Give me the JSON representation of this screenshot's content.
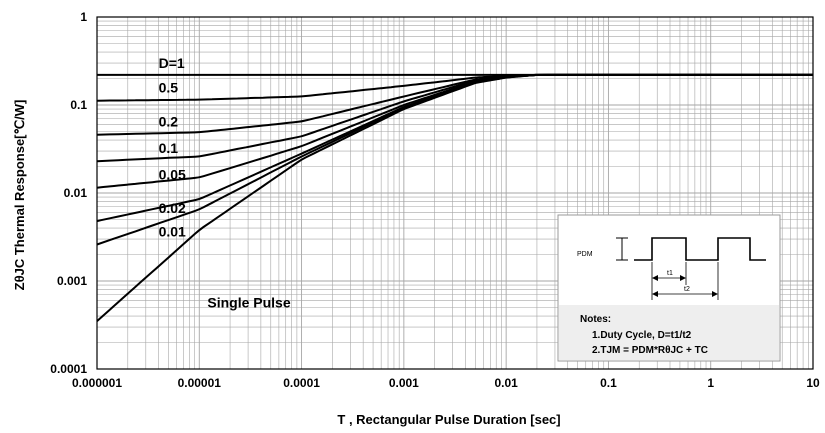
{
  "chart_data": {
    "type": "line",
    "xlabel": "T , Rectangular Pulse Duration [sec]",
    "ylabel": "ZθJC Thermal Response[℃/W]",
    "x_scale": "log",
    "y_scale": "log",
    "xlim": [
      1e-06,
      10
    ],
    "ylim": [
      0.0001,
      1
    ],
    "x_ticks": [
      "0.000001",
      "0.00001",
      "0.0001",
      "0.001",
      "0.01",
      "0.1",
      "1",
      "10"
    ],
    "y_ticks": [
      "1",
      "0.1",
      "0.01",
      "0.001",
      "0.0001"
    ],
    "grid": true,
    "steady_state": 0.22,
    "series": [
      {
        "name": "D=1",
        "x": [
          1e-06,
          0.001,
          0.01,
          10
        ],
        "y": [
          0.22,
          0.22,
          0.22,
          0.22
        ]
      },
      {
        "name": "0.5",
        "x": [
          1e-06,
          1e-05,
          0.0001,
          0.001,
          0.005,
          0.01,
          0.02,
          10
        ],
        "y": [
          0.112,
          0.115,
          0.125,
          0.165,
          0.205,
          0.215,
          0.22,
          0.22
        ]
      },
      {
        "name": "0.2",
        "x": [
          1e-06,
          1e-05,
          0.0001,
          0.001,
          0.005,
          0.01,
          0.02,
          10
        ],
        "y": [
          0.046,
          0.049,
          0.065,
          0.125,
          0.195,
          0.212,
          0.22,
          0.22
        ]
      },
      {
        "name": "0.1",
        "x": [
          1e-06,
          1e-05,
          0.0001,
          0.001,
          0.005,
          0.01,
          0.02,
          10
        ],
        "y": [
          0.023,
          0.026,
          0.044,
          0.11,
          0.19,
          0.21,
          0.22,
          0.22
        ]
      },
      {
        "name": "0.05",
        "x": [
          1e-06,
          1e-05,
          0.0001,
          0.001,
          0.005,
          0.01,
          0.02,
          10
        ],
        "y": [
          0.0115,
          0.015,
          0.034,
          0.1,
          0.185,
          0.208,
          0.22,
          0.22
        ]
      },
      {
        "name": "0.02",
        "x": [
          1e-06,
          1e-05,
          0.0001,
          0.001,
          0.005,
          0.01,
          0.02,
          10
        ],
        "y": [
          0.0048,
          0.0085,
          0.028,
          0.095,
          0.182,
          0.207,
          0.22,
          0.22
        ]
      },
      {
        "name": "0.01",
        "x": [
          1e-06,
          1e-05,
          0.0001,
          0.001,
          0.005,
          0.01,
          0.02,
          10
        ],
        "y": [
          0.0026,
          0.0065,
          0.026,
          0.093,
          0.18,
          0.206,
          0.22,
          0.22
        ]
      },
      {
        "name": "Single Pulse",
        "x": [
          1e-06,
          1e-05,
          0.0001,
          0.001,
          0.005,
          0.01,
          0.02,
          10
        ],
        "y": [
          0.00035,
          0.0038,
          0.024,
          0.09,
          0.178,
          0.205,
          0.22,
          0.22
        ]
      }
    ],
    "inset": {
      "pdm_label": "PDM",
      "t1_label": "t1",
      "t2_label": "t2",
      "notes_title": "Notes:",
      "note1": "1.Duty  Cycle, D=t1/t2",
      "note2": "2.TJM = PDM*RθJC + TC"
    }
  },
  "colors": {
    "line": "#000000",
    "grid": "#a6a6a6",
    "inset_bg": "#ffffff",
    "inset_notes_bg": "#eeeeee"
  }
}
